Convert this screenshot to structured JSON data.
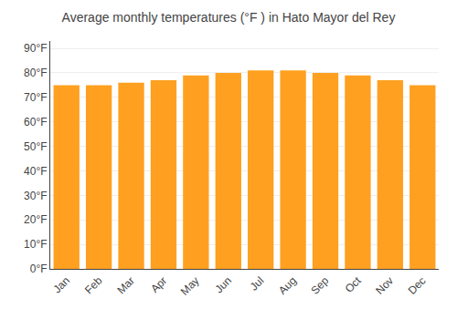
{
  "chart_data": {
    "type": "bar",
    "title": "Average monthly temperatures (°F ) in Hato Mayor del Rey",
    "categories": [
      "Jan",
      "Feb",
      "Mar",
      "Apr",
      "May",
      "Jun",
      "Jul",
      "Aug",
      "Sep",
      "Oct",
      "Nov",
      "Dec"
    ],
    "values": [
      75,
      75,
      76,
      77,
      79,
      80,
      81,
      81,
      80,
      79,
      77,
      75
    ],
    "color": "#FFA020",
    "ylim": [
      0,
      93
    ],
    "yticks": [
      {
        "value": 0,
        "label": "0°F"
      },
      {
        "value": 10,
        "label": "10°F"
      },
      {
        "value": 20,
        "label": "20°F"
      },
      {
        "value": 30,
        "label": "30°F"
      },
      {
        "value": 40,
        "label": "40°F"
      },
      {
        "value": 50,
        "label": "50°F"
      },
      {
        "value": 60,
        "label": "60°F"
      },
      {
        "value": 70,
        "label": "70°F"
      },
      {
        "value": 80,
        "label": "80°F"
      },
      {
        "value": 90,
        "label": "90°F"
      }
    ],
    "grid": true
  }
}
